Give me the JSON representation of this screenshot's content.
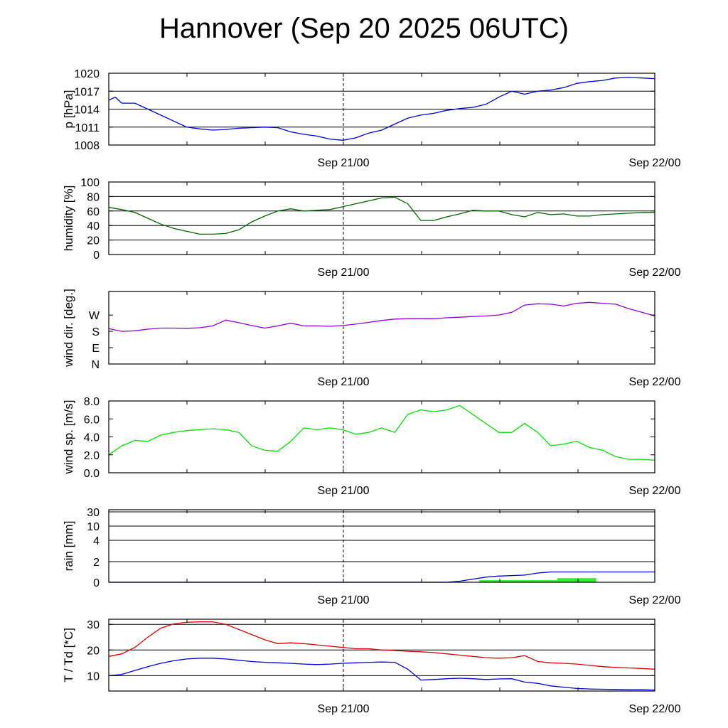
{
  "title": "Hannover (Sep 20 2025 06UTC)",
  "chart_data": [
    {
      "type": "line",
      "ylabel": "p [hPa]",
      "ylim": [
        1008,
        1020
      ],
      "yticks": [
        1008,
        1011,
        1014,
        1017,
        1020
      ],
      "grid_y": [
        1011,
        1014,
        1017
      ],
      "x_tick_labels": [
        "Sep 21/00",
        "Sep 22/00"
      ],
      "series": [
        {
          "color": "#0000dd",
          "x": [
            0,
            0.5,
            1,
            1.5,
            2,
            3,
            4,
            5,
            6,
            7,
            8,
            9,
            10,
            11,
            12,
            13,
            14,
            15,
            16,
            17,
            18,
            19,
            20,
            21,
            22,
            23,
            24,
            25,
            26,
            27,
            28,
            29,
            30,
            31,
            32,
            33,
            34,
            35,
            36,
            37,
            38,
            39,
            40,
            41,
            42
          ],
          "y": [
            1015.5,
            1016.0,
            1015.0,
            1015.0,
            1015.0,
            1014.0,
            1013.0,
            1012.0,
            1011.0,
            1010.7,
            1010.5,
            1010.6,
            1010.8,
            1010.9,
            1011.0,
            1010.9,
            1010.2,
            1009.8,
            1009.5,
            1009.0,
            1008.8,
            1009.2,
            1010.0,
            1010.5,
            1011.5,
            1012.5,
            1013.0,
            1013.3,
            1013.8,
            1014.1,
            1014.3,
            1014.8,
            1016.0,
            1017.0,
            1016.5,
            1017.0,
            1017.2,
            1017.6,
            1018.3,
            1018.6,
            1018.8,
            1019.2,
            1019.3,
            1019.2,
            1019.1
          ]
        }
      ]
    },
    {
      "type": "line",
      "ylabel": "humidity [%]",
      "ylim": [
        0,
        100
      ],
      "yticks": [
        0,
        20,
        40,
        60,
        80,
        100
      ],
      "grid_y": [
        20,
        40,
        60,
        80
      ],
      "x_tick_labels": [
        "Sep 21/00",
        "Sep 22/00"
      ],
      "series": [
        {
          "color": "#006400",
          "x": [
            0,
            1,
            2,
            3,
            4,
            5,
            6,
            7,
            8,
            9,
            10,
            11,
            12,
            13,
            14,
            15,
            16,
            17,
            18,
            19,
            20,
            21,
            22,
            23,
            24,
            25,
            26,
            27,
            28,
            29,
            30,
            31,
            32,
            33,
            34,
            35,
            36,
            37,
            38,
            39,
            40,
            41,
            42
          ],
          "y": [
            65,
            62,
            58,
            50,
            42,
            36,
            32,
            28,
            28,
            29,
            34,
            45,
            53,
            60,
            63,
            60,
            61,
            62,
            66,
            70,
            74,
            78,
            79,
            70,
            47,
            47,
            52,
            56,
            61,
            60,
            60,
            55,
            52,
            58,
            55,
            56,
            53,
            53,
            55,
            56,
            57,
            58,
            58
          ]
        }
      ]
    },
    {
      "type": "line",
      "ylabel": "wind dir. [deg.]",
      "ylim": [
        0,
        400
      ],
      "yticks": [
        0,
        90,
        180,
        270
      ],
      "ytick_labels": [
        "N",
        "E",
        "S",
        "W"
      ],
      "x_tick_labels": [
        "Sep 21/00",
        "Sep 22/00"
      ],
      "series": [
        {
          "color": "#9400d3",
          "x": [
            0,
            1,
            2,
            3,
            4,
            5,
            6,
            7,
            8,
            9,
            10,
            11,
            12,
            13,
            14,
            15,
            16,
            17,
            18,
            19,
            20,
            21,
            22,
            23,
            24,
            25,
            26,
            27,
            28,
            29,
            30,
            31,
            32,
            33,
            34,
            35,
            36,
            37,
            38,
            39,
            40,
            41,
            42
          ],
          "y": [
            195,
            180,
            183,
            192,
            198,
            198,
            197,
            200,
            210,
            242,
            228,
            212,
            198,
            210,
            225,
            210,
            210,
            208,
            212,
            220,
            230,
            240,
            248,
            250,
            250,
            250,
            255,
            258,
            262,
            265,
            270,
            285,
            325,
            332,
            330,
            320,
            335,
            340,
            335,
            330,
            305,
            285,
            265
          ]
        }
      ]
    },
    {
      "type": "line",
      "ylabel": "wind sp. [m/s]",
      "ylim": [
        0,
        8
      ],
      "yticks": [
        0,
        2,
        4,
        6,
        8
      ],
      "ytick_labels": [
        "0.0",
        "2.0",
        "4.0",
        "6.0",
        "8.0"
      ],
      "x_tick_labels": [
        "Sep 21/00",
        "Sep 22/00"
      ],
      "series": [
        {
          "color": "#00e000",
          "x": [
            0,
            1,
            2,
            3,
            4,
            5,
            6,
            7,
            8,
            9,
            10,
            11,
            12,
            13,
            14,
            15,
            16,
            17,
            18,
            19,
            20,
            21,
            22,
            23,
            24,
            25,
            26,
            27,
            28,
            29,
            30,
            31,
            32,
            33,
            34,
            35,
            36,
            37,
            38,
            39,
            40,
            41,
            42
          ],
          "y": [
            2.0,
            3.0,
            3.6,
            3.5,
            4.2,
            4.5,
            4.7,
            4.8,
            4.9,
            4.8,
            4.5,
            3.0,
            2.5,
            2.4,
            3.5,
            5.0,
            4.8,
            5.0,
            4.8,
            4.3,
            4.5,
            5.0,
            4.5,
            6.5,
            7.0,
            6.8,
            7.0,
            7.5,
            6.5,
            5.5,
            4.5,
            4.5,
            5.5,
            4.5,
            3.0,
            3.2,
            3.5,
            2.8,
            2.5,
            1.8,
            1.5,
            1.5,
            1.4
          ]
        }
      ]
    },
    {
      "type": "line",
      "ylabel": "rain [mm]",
      "ytick_labels": [
        "0",
        "2",
        "4",
        "10",
        "30"
      ],
      "x_tick_labels": [
        "Sep 21/00",
        "Sep 22/00"
      ],
      "series": [
        {
          "color": "#0000dd",
          "x": [
            0,
            26,
            27,
            28,
            29,
            30,
            31,
            32,
            33,
            34,
            36,
            38,
            40,
            42
          ],
          "y": [
            0,
            0,
            0.1,
            0.3,
            0.5,
            0.6,
            0.65,
            0.7,
            0.9,
            1.0,
            1.0,
            1.0,
            1.0,
            1.0
          ]
        }
      ],
      "bars": [
        {
          "color": "#33ee33",
          "x0": 28.5,
          "x1": 34.5,
          "value": 0.2
        },
        {
          "color": "#33ee33",
          "x0": 34.5,
          "x1": 37.5,
          "value": 0.4
        }
      ]
    },
    {
      "type": "line",
      "ylabel": "T / Td [*C]",
      "ylim": [
        4,
        32
      ],
      "yticks": [
        10,
        20,
        30
      ],
      "grid_y": [
        10,
        20,
        30
      ],
      "x_tick_labels": [
        "Sep 21/00",
        "Sep 22/00"
      ],
      "series": [
        {
          "color": "#dd0000",
          "x": [
            0,
            1,
            2,
            3,
            4,
            5,
            6,
            7,
            8,
            9,
            10,
            11,
            12,
            13,
            14,
            15,
            16,
            17,
            18,
            19,
            20,
            21,
            22,
            23,
            24,
            25,
            26,
            27,
            28,
            29,
            30,
            31,
            32,
            33,
            34,
            35,
            36,
            37,
            38,
            39,
            40,
            41,
            42
          ],
          "y": [
            17.5,
            18.5,
            21,
            25,
            28.5,
            30.2,
            30.8,
            31,
            31,
            30,
            28,
            26,
            24,
            22.5,
            22.8,
            22.5,
            22,
            21.5,
            21,
            20.5,
            20.5,
            20,
            19.8,
            19.5,
            19.3,
            19,
            18.5,
            18,
            17.5,
            17,
            16.8,
            17,
            17.8,
            15.5,
            15,
            14.8,
            14.5,
            14,
            13.5,
            13.2,
            13,
            12.8,
            12.5
          ]
        },
        {
          "color": "#0000dd",
          "x": [
            0,
            1,
            2,
            3,
            4,
            5,
            6,
            7,
            8,
            9,
            10,
            11,
            12,
            13,
            14,
            15,
            16,
            17,
            18,
            19,
            20,
            21,
            22,
            23,
            24,
            25,
            26,
            27,
            28,
            29,
            30,
            31,
            32,
            33,
            34,
            35,
            36,
            37,
            38,
            39,
            40,
            41,
            42
          ],
          "y": [
            10,
            10.5,
            12,
            13.5,
            14.8,
            15.8,
            16.5,
            16.8,
            16.8,
            16.5,
            16,
            15.5,
            15.2,
            15,
            14.8,
            14.5,
            14.3,
            14.5,
            14.8,
            15,
            15.2,
            15.3,
            15.2,
            12.5,
            8.3,
            8.5,
            8.8,
            9,
            8.8,
            8.5,
            8.7,
            8.8,
            7.5,
            7,
            6,
            5.5,
            5,
            4.8,
            4.7,
            4.6,
            4.5,
            4.5,
            4.4
          ]
        }
      ]
    }
  ]
}
